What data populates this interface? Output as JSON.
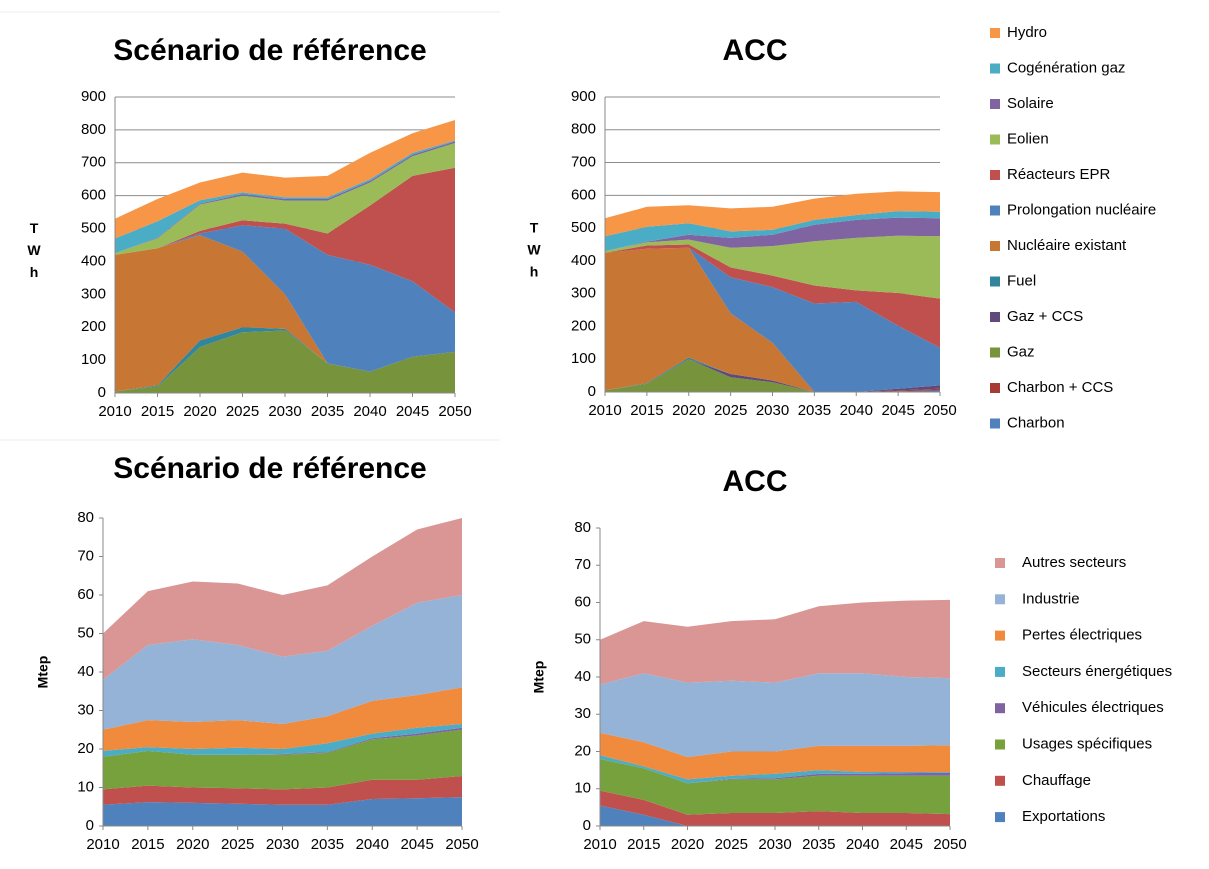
{
  "chart_data": [
    {
      "type": "stacked_area",
      "title": "Scénario de référence",
      "y_label": "TWh",
      "x": [
        2010,
        2015,
        2020,
        2025,
        2030,
        2035,
        2040,
        2045,
        2050
      ],
      "xlim": [
        2010,
        2050
      ],
      "xticks": [
        2010,
        2015,
        2020,
        2025,
        2030,
        2035,
        2040,
        2045,
        2050
      ],
      "ylim": [
        0,
        900
      ],
      "yticks": [
        0,
        100,
        200,
        300,
        400,
        500,
        600,
        700,
        800,
        900
      ],
      "grid": true,
      "series": [
        {
          "name": "Charbon",
          "color": "#4f81bd",
          "values": [
            0,
            0,
            0,
            0,
            0,
            0,
            0,
            0,
            0
          ]
        },
        {
          "name": "Charbon + CCS",
          "color": "#a83a36",
          "values": [
            0,
            0,
            0,
            0,
            0,
            0,
            0,
            0,
            0
          ]
        },
        {
          "name": "Gaz",
          "color": "#77933c",
          "values": [
            5,
            20,
            140,
            185,
            190,
            90,
            65,
            110,
            125
          ]
        },
        {
          "name": "Gaz + CCS",
          "color": "#604a7b",
          "values": [
            0,
            0,
            0,
            0,
            0,
            0,
            0,
            0,
            0
          ]
        },
        {
          "name": "Fuel",
          "color": "#31859c",
          "values": [
            0,
            3,
            20,
            15,
            5,
            0,
            0,
            0,
            0
          ]
        },
        {
          "name": "Nucléaire existant",
          "color": "#c87634",
          "values": [
            415,
            417,
            320,
            230,
            105,
            0,
            0,
            0,
            0
          ]
        },
        {
          "name": "Prolongation nucléaire",
          "color": "#4f81bd",
          "values": [
            0,
            0,
            5,
            80,
            200,
            330,
            325,
            230,
            120
          ]
        },
        {
          "name": "Réacteurs EPR",
          "color": "#c0504d",
          "values": [
            0,
            0,
            8,
            15,
            15,
            65,
            180,
            320,
            440
          ]
        },
        {
          "name": "Eolien",
          "color": "#9bbb59",
          "values": [
            5,
            30,
            80,
            75,
            70,
            100,
            70,
            60,
            75
          ]
        },
        {
          "name": "Solaire",
          "color": "#8064a2",
          "values": [
            0,
            2,
            3,
            5,
            5,
            5,
            5,
            5,
            5
          ]
        },
        {
          "name": "Cogénération gaz",
          "color": "#4bacc6",
          "values": [
            45,
            50,
            10,
            5,
            5,
            5,
            5,
            5,
            3
          ]
        },
        {
          "name": "Hydro",
          "color": "#f79646",
          "values": [
            60,
            68,
            54,
            60,
            60,
            65,
            80,
            60,
            62
          ]
        }
      ]
    },
    {
      "type": "stacked_area",
      "title": "ACC",
      "y_label": "TWh",
      "x": [
        2010,
        2015,
        2020,
        2025,
        2030,
        2035,
        2040,
        2045,
        2050
      ],
      "xlim": [
        2010,
        2050
      ],
      "xticks": [
        2010,
        2015,
        2020,
        2025,
        2030,
        2035,
        2040,
        2045,
        2050
      ],
      "ylim": [
        0,
        900
      ],
      "yticks": [
        0,
        100,
        200,
        300,
        400,
        500,
        600,
        700,
        800,
        900
      ],
      "grid": true,
      "series": [
        {
          "color": "#4f81bd",
          "values": [
            0,
            0,
            0,
            0,
            0,
            0,
            0,
            2,
            5
          ]
        },
        {
          "color": "#a83a36",
          "values": [
            0,
            0,
            0,
            0,
            0,
            0,
            0,
            3,
            5
          ]
        },
        {
          "color": "#77933c",
          "values": [
            5,
            25,
            100,
            45,
            30,
            0,
            0,
            0,
            0
          ]
        },
        {
          "color": "#604a7b",
          "values": [
            0,
            0,
            0,
            10,
            5,
            0,
            0,
            5,
            10
          ]
        },
        {
          "color": "#31859c",
          "values": [
            0,
            2,
            5,
            0,
            0,
            0,
            0,
            0,
            0
          ]
        },
        {
          "color": "#c87634",
          "values": [
            420,
            410,
            335,
            185,
            115,
            0,
            0,
            0,
            0
          ]
        },
        {
          "color": "#4f81bd",
          "values": [
            0,
            0,
            0,
            110,
            170,
            270,
            275,
            192,
            115
          ]
        },
        {
          "color": "#c0504d",
          "values": [
            0,
            10,
            10,
            30,
            35,
            55,
            35,
            100,
            150
          ]
        },
        {
          "color": "#9bbb59",
          "values": [
            5,
            10,
            15,
            60,
            90,
            135,
            160,
            175,
            190
          ]
        },
        {
          "color": "#8064a2",
          "values": [
            0,
            2,
            15,
            30,
            35,
            50,
            55,
            55,
            55
          ]
        },
        {
          "color": "#4bacc6",
          "values": [
            45,
            45,
            35,
            20,
            15,
            15,
            15,
            20,
            20
          ]
        },
        {
          "color": "#f79646",
          "values": [
            55,
            61,
            55,
            70,
            70,
            65,
            65,
            60,
            60
          ]
        }
      ]
    },
    {
      "type": "stacked_area",
      "title": "Scénario de référence",
      "y_label": "Mtep",
      "x": [
        2010,
        2015,
        2020,
        2025,
        2030,
        2035,
        2040,
        2045,
        2050
      ],
      "xlim": [
        2010,
        2050
      ],
      "xticks": [
        2010,
        2015,
        2020,
        2025,
        2030,
        2035,
        2040,
        2045,
        2050
      ],
      "ylim": [
        0,
        80
      ],
      "yticks": [
        0,
        10,
        20,
        30,
        40,
        50,
        60,
        70,
        80
      ],
      "grid": false,
      "series": [
        {
          "name": "Exportations",
          "color": "#4f81bd",
          "values": [
            5.5,
            6.2,
            6,
            5.8,
            5.5,
            5.5,
            7,
            7.2,
            7.5
          ]
        },
        {
          "name": "Chauffage",
          "color": "#c0504d",
          "values": [
            4,
            4.3,
            4,
            4,
            4,
            4.5,
            5,
            4.8,
            5.5
          ]
        },
        {
          "name": "Usages spécifiques",
          "color": "#77a13d",
          "values": [
            8.5,
            9,
            8.5,
            8.7,
            9,
            9,
            10.5,
            11.5,
            12
          ]
        },
        {
          "name": "Véhicules électriques",
          "color": "#8064a2",
          "values": [
            0,
            0,
            0,
            0,
            0.2,
            0.2,
            0.3,
            0.5,
            0.5
          ]
        },
        {
          "name": "Secteurs énergétiques",
          "color": "#4bacc6",
          "values": [
            1.5,
            1,
            1.5,
            1.8,
            1.3,
            2.3,
            1.2,
            1.5,
            1
          ]
        },
        {
          "name": "Pertes électriques",
          "color": "#f08a3c",
          "values": [
            5.5,
            7,
            7,
            7.2,
            6.5,
            7,
            8.5,
            8.5,
            9.5
          ]
        },
        {
          "name": "Industrie",
          "color": "#95b3d7",
          "values": [
            13,
            19.5,
            21.5,
            19.5,
            17.5,
            17,
            19.5,
            24,
            24
          ]
        },
        {
          "name": "Autres secteurs",
          "color": "#d99694",
          "values": [
            12,
            14,
            15,
            16,
            16,
            17,
            18,
            19,
            20
          ]
        }
      ]
    },
    {
      "type": "stacked_area",
      "title": "ACC",
      "y_label": "Mtep",
      "x": [
        2010,
        2015,
        2020,
        2025,
        2030,
        2035,
        2040,
        2045,
        2050
      ],
      "xlim": [
        2010,
        2050
      ],
      "xticks": [
        2010,
        2015,
        2020,
        2025,
        2030,
        2035,
        2040,
        2045,
        2050
      ],
      "ylim": [
        0,
        80
      ],
      "yticks": [
        0,
        10,
        20,
        30,
        40,
        50,
        60,
        70,
        80
      ],
      "grid": false,
      "series": [
        {
          "color": "#4f81bd",
          "values": [
            5.5,
            3,
            0,
            0,
            0,
            0,
            0,
            0,
            0
          ]
        },
        {
          "color": "#c0504d",
          "values": [
            4,
            4,
            3,
            3.5,
            3.5,
            4,
            3.5,
            3.5,
            3.2
          ]
        },
        {
          "color": "#77a13d",
          "values": [
            8.5,
            8.5,
            8.5,
            9,
            9,
            9.5,
            10,
            10,
            10.3
          ]
        },
        {
          "color": "#8064a2",
          "values": [
            0,
            0,
            0,
            0.2,
            0.3,
            0.5,
            0.5,
            0.7,
            0.8
          ]
        },
        {
          "color": "#4bacc6",
          "values": [
            1,
            0.5,
            1,
            0.8,
            1.2,
            1,
            0.5,
            0.3,
            0.2
          ]
        },
        {
          "color": "#f08a3c",
          "values": [
            6,
            6.5,
            6,
            6.5,
            6,
            6.5,
            7,
            7,
            7.2
          ]
        },
        {
          "color": "#95b3d7",
          "values": [
            13,
            18.5,
            20,
            19,
            18.5,
            19.5,
            19.5,
            18.5,
            18
          ]
        },
        {
          "color": "#d99694",
          "values": [
            12,
            14,
            15,
            16,
            17,
            18,
            19,
            20.5,
            21
          ]
        }
      ]
    }
  ]
}
